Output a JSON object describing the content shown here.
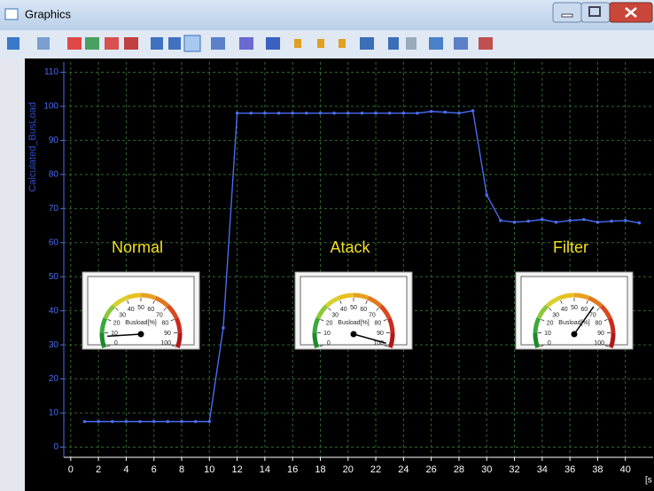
{
  "window": {
    "title": "Graphics"
  },
  "chart_data": {
    "type": "line",
    "x_unit": "[s",
    "x": [
      1,
      2,
      3,
      4,
      5,
      6,
      7,
      8,
      9,
      10,
      11,
      12,
      13,
      14,
      15,
      16,
      17,
      18,
      19,
      20,
      21,
      22,
      23,
      24,
      25,
      26,
      27,
      28,
      29,
      30,
      31,
      32,
      33,
      34,
      35,
      36,
      37,
      38,
      39,
      40,
      41
    ],
    "series": [
      {
        "name": "Calculated_BusLoad",
        "color": "#4a6cf0",
        "values": [
          7.5,
          7.5,
          7.5,
          7.5,
          7.5,
          7.5,
          7.5,
          7.5,
          7.5,
          7.5,
          35,
          98,
          98,
          98,
          98,
          98,
          98,
          98,
          98,
          98,
          98,
          98,
          98,
          98,
          98,
          98.5,
          98.3,
          98,
          98.7,
          74,
          66.5,
          66,
          66.3,
          66.8,
          66,
          66.5,
          66.8,
          66,
          66.3,
          66.5,
          65.8
        ]
      }
    ],
    "xlim": [
      -0.5,
      42
    ],
    "ylim": [
      -3,
      113
    ],
    "xticks": [
      0,
      2,
      4,
      6,
      8,
      10,
      12,
      14,
      16,
      18,
      20,
      22,
      24,
      26,
      28,
      30,
      32,
      34,
      36,
      38,
      40
    ],
    "yticks": [
      0,
      10,
      20,
      30,
      40,
      50,
      60,
      70,
      80,
      90,
      100,
      110
    ],
    "grid": true
  },
  "gauge_label": "Busload[%]",
  "gauge_ticks": [
    0,
    10,
    20,
    30,
    40,
    50,
    60,
    70,
    80,
    90,
    100
  ],
  "gauges": [
    {
      "caption": "Normal",
      "value": 7.5
    },
    {
      "caption": "Atack",
      "value": 98
    },
    {
      "caption": "Filter",
      "value": 66
    }
  ]
}
